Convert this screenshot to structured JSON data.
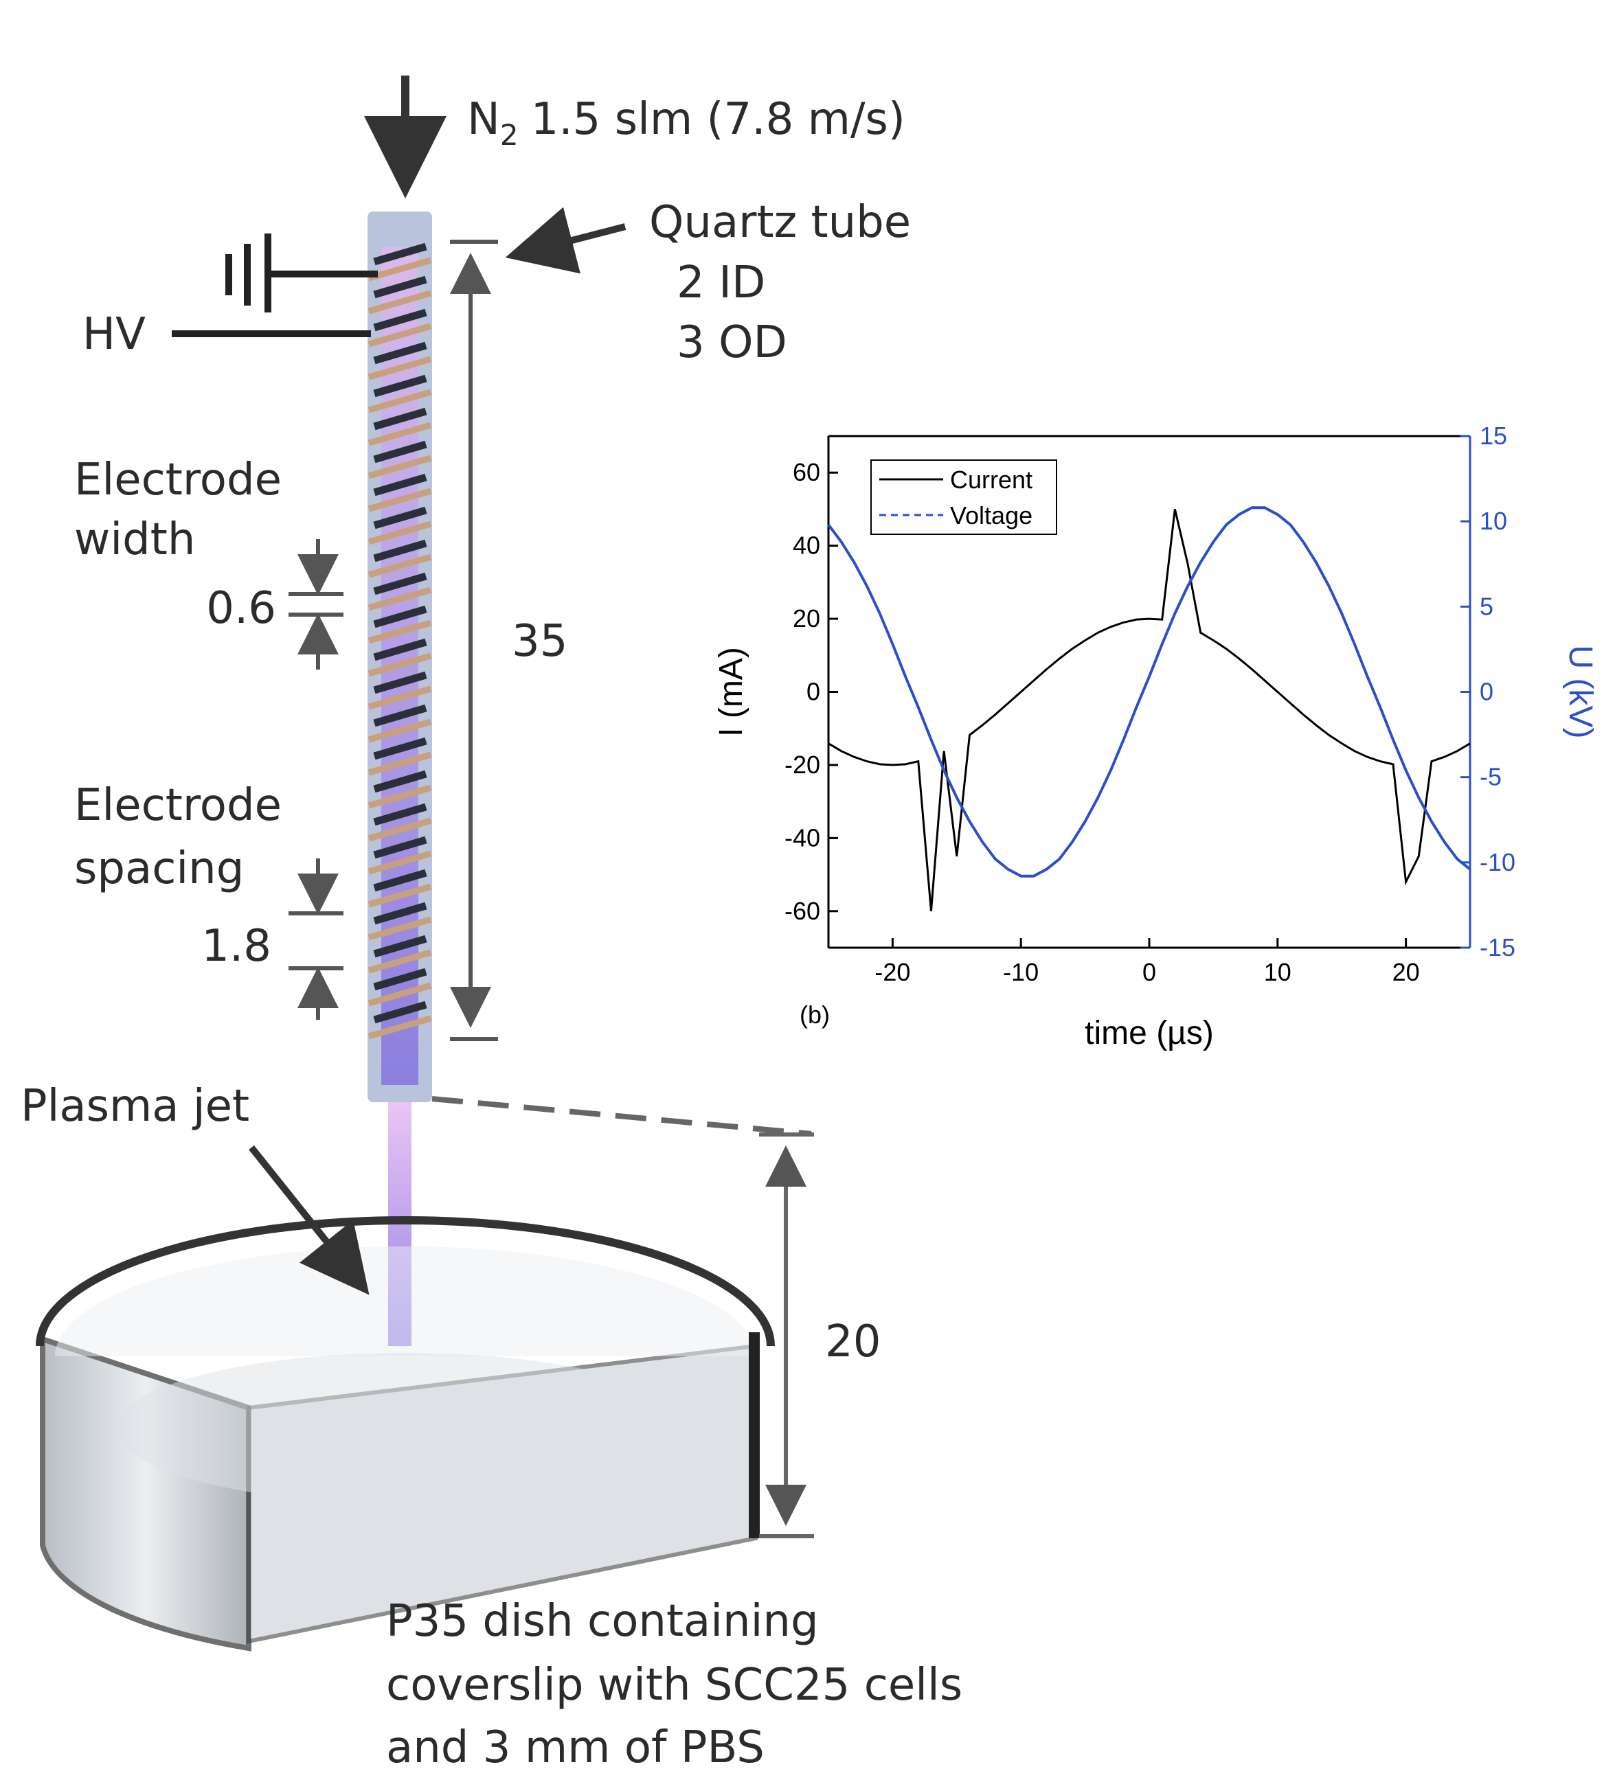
{
  "labels": {
    "gas_symbol": "N",
    "gas_subscript": "2",
    "gas_flow": "1.5 slm (7.8 m/s)",
    "quartz_tube": "Quartz tube",
    "inner_diameter": "2 ID",
    "outer_diameter": "3 OD",
    "hv": "HV",
    "electrode_width": [
      "Electrode",
      "width"
    ],
    "width_value": "0.6",
    "tube_length": "35",
    "electrode_spacing": [
      "Electrode",
      "spacing"
    ],
    "spacing_value": "1.8",
    "plasma_jet": "Plasma jet",
    "gap": "20",
    "dish": [
      "P35 dish containing",
      "coverslip with SCC25 cells",
      "and 3 mm of PBS"
    ]
  },
  "chart_data": {
    "type": "line",
    "panel_label": "(b)",
    "xlabel": "time (µs)",
    "ylabel": "I (mA)",
    "y2label": "U (kV)",
    "x": [
      -25,
      -24,
      -23,
      -22,
      -21,
      -20,
      -19,
      -18,
      -17,
      -16,
      -15,
      -14,
      -13,
      -12,
      -11,
      -10,
      -9,
      -8,
      -7,
      -6,
      -5,
      -4,
      -3,
      -2,
      -1,
      0,
      1,
      2,
      3,
      4,
      5,
      6,
      7,
      8,
      9,
      10,
      11,
      12,
      13,
      14,
      15,
      16,
      17,
      18,
      19,
      20,
      21,
      22,
      23,
      24,
      25
    ],
    "series": [
      {
        "name": "Current",
        "color": "#000000",
        "linestyle": "solid",
        "values": [
          -14.1,
          -16.2,
          -17.8,
          -19.0,
          -19.8,
          -20,
          -19.8,
          -19.0,
          -60,
          -16.2,
          -45,
          -11.8,
          -9.1,
          -6.2,
          -3.1,
          0,
          3.1,
          6.2,
          9.1,
          11.8,
          14.1,
          16.2,
          17.8,
          19.0,
          19.8,
          20,
          19.8,
          50,
          35,
          16.2,
          14.1,
          11.8,
          9.1,
          6.2,
          3.1,
          0,
          -3.1,
          -6.2,
          -9.1,
          -11.8,
          -14.1,
          -16.2,
          -17.8,
          -19.0,
          -19.8,
          -52,
          -45,
          -19.0,
          -17.8,
          -16.2,
          -14.1
        ]
      },
      {
        "name": "Voltage",
        "color": "#2a4fc9",
        "linestyle": "dashed",
        "axis": "y2",
        "values": [
          9.8,
          8.8,
          7.6,
          6.2,
          4.6,
          2.8,
          0.9,
          -0.9,
          -2.8,
          -4.6,
          -6.2,
          -7.6,
          -8.8,
          -9.8,
          -10.4,
          -10.8,
          -10.8,
          -10.4,
          -9.8,
          -8.8,
          -7.6,
          -6.2,
          -4.6,
          -2.8,
          -0.9,
          0.9,
          2.8,
          4.6,
          6.2,
          7.6,
          8.8,
          9.8,
          10.4,
          10.8,
          10.8,
          10.4,
          9.8,
          8.8,
          7.6,
          6.2,
          4.6,
          2.8,
          0.9,
          -0.9,
          -2.8,
          -4.6,
          -6.2,
          -7.6,
          -8.8,
          -9.8,
          -10.4
        ]
      }
    ],
    "xlim": [
      -25,
      25
    ],
    "ylim": [
      -70,
      70
    ],
    "y2lim": [
      -15,
      15
    ],
    "xticks": [
      -20,
      -10,
      0,
      10,
      20
    ],
    "yticks": [
      -60,
      -40,
      -20,
      0,
      20,
      40,
      60
    ],
    "y2ticks": [
      -15,
      -10,
      -5,
      0,
      5,
      10,
      15
    ],
    "legend": "upper left"
  }
}
